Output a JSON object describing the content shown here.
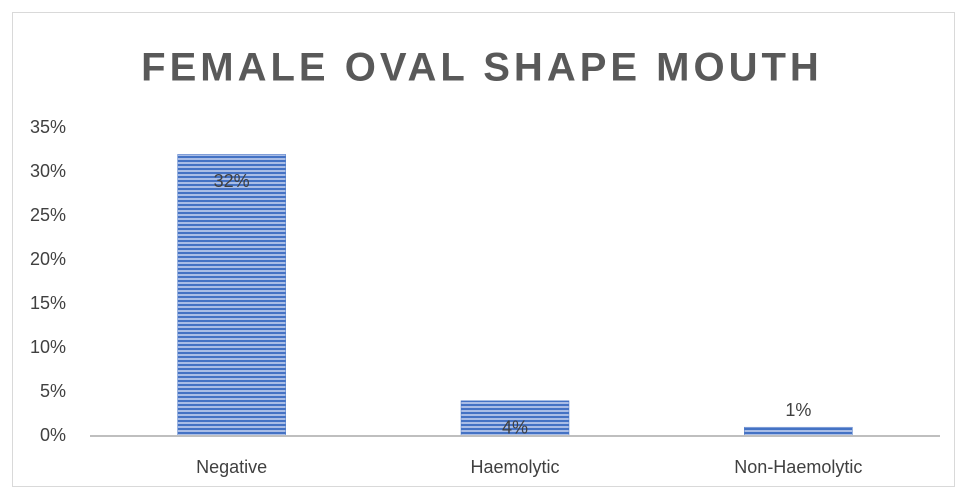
{
  "chart_data": {
    "type": "bar",
    "title": "FEMALE OVAL SHAPE MOUTH",
    "categories": [
      "Negative",
      "Haemolytic",
      "Non-Haemolytic"
    ],
    "values": [
      32,
      4,
      1
    ],
    "value_labels": [
      "32%",
      "4%",
      "1%"
    ],
    "color": "#4472c4",
    "ylim": [
      0,
      35
    ],
    "yticks": [
      {
        "value": 0,
        "label": "0%"
      },
      {
        "value": 5,
        "label": "5%"
      },
      {
        "value": 10,
        "label": "10%"
      },
      {
        "value": 15,
        "label": "15%"
      },
      {
        "value": 20,
        "label": "20%"
      },
      {
        "value": 25,
        "label": "25%"
      },
      {
        "value": 30,
        "label": "30%"
      },
      {
        "value": 35,
        "label": "35%"
      }
    ],
    "grid": false
  }
}
